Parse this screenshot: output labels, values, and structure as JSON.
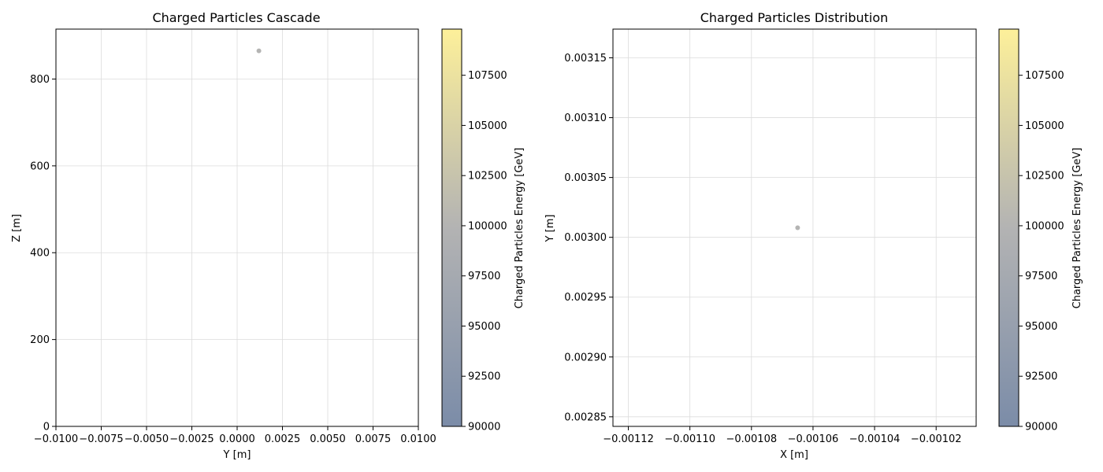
{
  "chart_data": [
    {
      "type": "scatter",
      "title": "Charged Particles Cascade",
      "xlabel": "Y [m]",
      "ylabel": "Z [m]",
      "xlim": [
        -0.01,
        0.01
      ],
      "ylim": [
        0,
        915
      ],
      "xticks": [
        -0.01,
        -0.0075,
        -0.005,
        -0.0025,
        0.0,
        0.0025,
        0.005,
        0.0075,
        0.01
      ],
      "xtick_labels": [
        "−0.0100",
        "−0.0075",
        "−0.0050",
        "−0.0025",
        "0.0000",
        "0.0025",
        "0.0050",
        "0.0075",
        "0.0100"
      ],
      "yticks": [
        0,
        200,
        400,
        600,
        800
      ],
      "ytick_labels": [
        "0",
        "200",
        "400",
        "600",
        "800"
      ],
      "grid": true,
      "points": [
        {
          "x": 0.0012,
          "y": 865,
          "energy": 100000
        }
      ],
      "colorbar": {
        "label": "Charged Particles Energy [GeV]",
        "range": [
          90000,
          109800
        ],
        "ticks": [
          90000,
          92500,
          95000,
          97500,
          100000,
          102500,
          105000,
          107500
        ],
        "tick_labels": [
          "90000",
          "92500",
          "95000",
          "97500",
          "100000",
          "102500",
          "105000",
          "107500"
        ],
        "colors": [
          "#7b8ca8",
          "#b3b3b3",
          "#fdf09a"
        ]
      }
    },
    {
      "type": "scatter",
      "title": "Charged Particles Distribution",
      "xlabel": "X [m]",
      "ylabel": "Y [m]",
      "xlim": [
        -0.001125,
        -0.001007
      ],
      "ylim": [
        0.002842,
        0.003174
      ],
      "xticks": [
        -0.00112,
        -0.0011,
        -0.00108,
        -0.00106,
        -0.00104,
        -0.00102
      ],
      "xtick_labels": [
        "−0.00112",
        "−0.00110",
        "−0.00108",
        "−0.00106",
        "−0.00104",
        "−0.00102"
      ],
      "yticks": [
        0.00285,
        0.0029,
        0.00295,
        0.003,
        0.00305,
        0.0031,
        0.00315
      ],
      "ytick_labels": [
        "0.00285",
        "0.00290",
        "0.00295",
        "0.00300",
        "0.00305",
        "0.00310",
        "0.00315"
      ],
      "grid": true,
      "points": [
        {
          "x": -0.001065,
          "y": 0.003008,
          "energy": 100000
        }
      ],
      "colorbar": {
        "label": "Charged Particles Energy [GeV]",
        "range": [
          90000,
          109800
        ],
        "ticks": [
          90000,
          92500,
          95000,
          97500,
          100000,
          102500,
          105000,
          107500
        ],
        "tick_labels": [
          "90000",
          "92500",
          "95000",
          "97500",
          "100000",
          "102500",
          "105000",
          "107500"
        ],
        "colors": [
          "#7b8ca8",
          "#b3b3b3",
          "#fdf09a"
        ]
      }
    }
  ]
}
